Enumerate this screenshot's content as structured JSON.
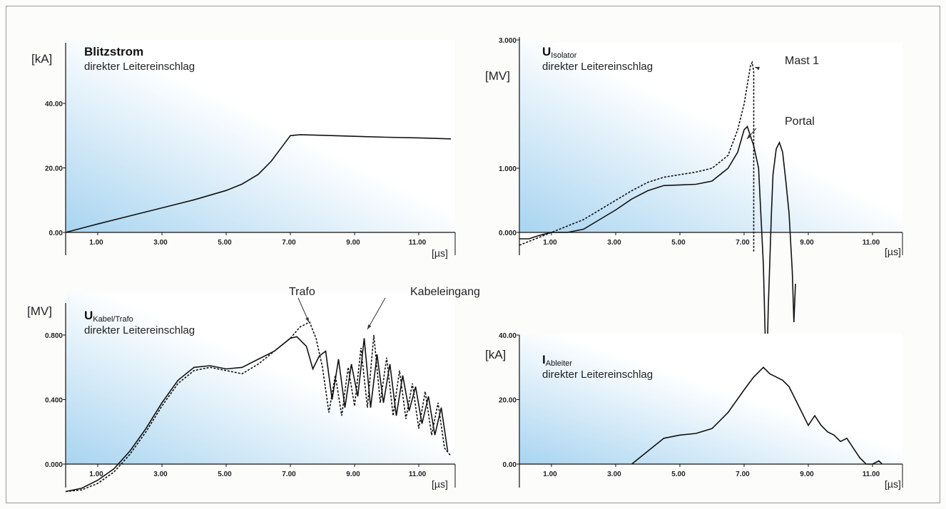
{
  "colors": {
    "background": "#fcfcfb",
    "panel_gradient_start": "#a8d4f0",
    "panel_gradient_end": "#ffffff",
    "line": "#111111",
    "axis": "#111111",
    "frame": "#9a9a9a"
  },
  "chart_data": [
    {
      "id": "blitzstrom",
      "type": "line",
      "title": "Blitzstrom",
      "subtitle": "direkter Leitereinschlag",
      "ylabel": "[kA]",
      "xlabel": "[µs]",
      "xlim": [
        0,
        12
      ],
      "ylim": [
        0,
        52
      ],
      "xticks": [
        "1.00",
        "3.00",
        "5.00",
        "7.00",
        "9.00",
        "11.00"
      ],
      "yticks": [
        "0.00",
        "20.00",
        "40.00"
      ],
      "series": [
        {
          "style": "solid",
          "x": [
            0,
            1,
            2,
            3,
            4,
            5,
            5.5,
            6,
            6.4,
            6.7,
            7,
            7.3,
            7.6,
            8,
            9,
            10,
            11,
            12
          ],
          "y": [
            0,
            2.6,
            5.1,
            7.6,
            10.1,
            13.0,
            15.0,
            18.0,
            22.0,
            26.0,
            30.0,
            30.3,
            30.2,
            30.1,
            29.8,
            29.5,
            29.3,
            29.0
          ]
        }
      ]
    },
    {
      "id": "u-isolator",
      "type": "line",
      "title": "U",
      "title_sub": "Isolator",
      "subtitle": "direkter Leitereinschlag",
      "ylabel": "[MV]",
      "xlabel": "[µs]",
      "xlim": [
        0,
        12
      ],
      "ylim": [
        -3.4,
        3.0
      ],
      "xticks": [
        "1.00",
        "3.00",
        "5.00",
        "7.00",
        "9.00",
        "11.00"
      ],
      "yticks": [
        "0.000",
        "1.000",
        "3.000"
      ],
      "annotations": [
        "Mast 1",
        "Portal"
      ],
      "series": [
        {
          "name": "Mast 1",
          "style": "dashed",
          "x": [
            0,
            0.5,
            1,
            1.5,
            2,
            2.5,
            3,
            3.5,
            4,
            4.5,
            5,
            5.5,
            6,
            6.5,
            6.8,
            7,
            7.2,
            7.25,
            7.3,
            7.3
          ],
          "y": [
            -0.2,
            -0.1,
            0.0,
            0.1,
            0.2,
            0.35,
            0.5,
            0.65,
            0.78,
            0.86,
            0.9,
            0.94,
            1.0,
            1.2,
            1.6,
            2.0,
            2.6,
            2.65,
            2.5,
            -0.3
          ]
        },
        {
          "name": "Portal",
          "style": "solid",
          "x": [
            0,
            0.3,
            0.6,
            1,
            1.5,
            2,
            2.5,
            3,
            3.5,
            4,
            4.5,
            5,
            5.5,
            6,
            6.5,
            6.8,
            7,
            7.1,
            7.2,
            7.3,
            7.45,
            7.6,
            7.65,
            7.7,
            7.75,
            7.85,
            7.9,
            8.0,
            8.1,
            8.2,
            8.3,
            8.4,
            8.5,
            8.55,
            8.6
          ],
          "y": [
            -0.1,
            -0.1,
            -0.05,
            0.0,
            0.0,
            0.05,
            0.2,
            0.35,
            0.52,
            0.65,
            0.73,
            0.74,
            0.75,
            0.8,
            1.0,
            1.25,
            1.6,
            1.65,
            1.5,
            1.35,
            1.0,
            -0.5,
            -1.5,
            -2.3,
            -1.2,
            0.3,
            0.9,
            1.3,
            1.4,
            1.25,
            0.8,
            0.3,
            -0.6,
            -1.4,
            -0.8
          ]
        }
      ]
    },
    {
      "id": "u-kabel-trafo",
      "type": "line",
      "title": "U",
      "title_sub": "Kabel/Trafo",
      "subtitle": "direkter Leitereinschlag",
      "ylabel": "[MV]",
      "xlabel": "[µs]",
      "xlim": [
        0,
        12
      ],
      "ylim": [
        -0.17,
        1.0
      ],
      "xticks": [
        "1.00",
        "3.00",
        "5.00",
        "7.00",
        "9.00",
        "11.00"
      ],
      "yticks": [
        "0.000",
        "0.400",
        "0.800"
      ],
      "annotations": [
        "Trafo",
        "Kabeleingang"
      ],
      "series": [
        {
          "name": "Kabeleingang",
          "style": "solid",
          "x": [
            0,
            0.5,
            1,
            1.5,
            2,
            2.5,
            3,
            3.5,
            4,
            4.5,
            5,
            5.5,
            6,
            6.5,
            7,
            7.2,
            7.5,
            7.7,
            7.9,
            8.1,
            8.3,
            8.5,
            8.7,
            8.9,
            9.1,
            9.3,
            9.5,
            9.7,
            9.9,
            10.1,
            10.3,
            10.5,
            10.7,
            10.9,
            11.1,
            11.3,
            11.5,
            11.7,
            11.9
          ],
          "y": [
            -0.17,
            -0.15,
            -0.1,
            -0.03,
            0.08,
            0.22,
            0.38,
            0.52,
            0.6,
            0.61,
            0.59,
            0.6,
            0.65,
            0.7,
            0.78,
            0.79,
            0.73,
            0.59,
            0.67,
            0.7,
            0.4,
            0.65,
            0.35,
            0.62,
            0.42,
            0.78,
            0.35,
            0.68,
            0.38,
            0.62,
            0.3,
            0.55,
            0.33,
            0.48,
            0.25,
            0.42,
            0.18,
            0.35,
            0.08
          ]
        },
        {
          "name": "Trafo",
          "style": "dashed",
          "x": [
            0,
            0.5,
            1,
            1.5,
            2,
            2.5,
            3,
            3.5,
            4,
            4.5,
            5,
            5.5,
            6,
            6.5,
            7,
            7.3,
            7.6,
            7.8,
            8.0,
            8.2,
            8.4,
            8.6,
            8.8,
            9.0,
            9.2,
            9.4,
            9.6,
            9.8,
            10.0,
            10.2,
            10.4,
            10.6,
            10.8,
            11.0,
            11.2,
            11.4,
            11.6,
            11.8,
            12.0
          ],
          "y": [
            -0.17,
            -0.16,
            -0.12,
            -0.05,
            0.06,
            0.2,
            0.36,
            0.5,
            0.58,
            0.6,
            0.58,
            0.56,
            0.62,
            0.7,
            0.78,
            0.85,
            0.88,
            0.78,
            0.6,
            0.32,
            0.55,
            0.3,
            0.6,
            0.36,
            0.72,
            0.35,
            0.8,
            0.38,
            0.66,
            0.3,
            0.58,
            0.28,
            0.5,
            0.22,
            0.45,
            0.18,
            0.38,
            0.1,
            0.05
          ]
        }
      ]
    },
    {
      "id": "i-ableiter",
      "type": "line",
      "title": "I",
      "title_sub": "Ableiter",
      "subtitle": "direkter Leitereinschlag",
      "ylabel": "[kA]",
      "xlabel": "[µs]",
      "xlim": [
        0,
        12
      ],
      "ylim": [
        0,
        40
      ],
      "xticks": [
        "1.00",
        "3.00",
        "5.00",
        "7.00",
        "9.00",
        "11.00"
      ],
      "yticks": [
        "0.00",
        "20.00",
        "40.00"
      ],
      "series": [
        {
          "style": "solid",
          "x": [
            3.5,
            4.0,
            4.5,
            5.0,
            5.5,
            6.0,
            6.5,
            7.0,
            7.3,
            7.6,
            7.8,
            8.0,
            8.2,
            8.4,
            8.6,
            8.8,
            9.0,
            9.2,
            9.4,
            9.6,
            9.8,
            10.0,
            10.2,
            10.4,
            10.6,
            10.8,
            11.0,
            11.2,
            11.3
          ],
          "y": [
            0,
            4,
            8,
            9,
            9.5,
            11,
            16,
            23,
            27,
            30,
            28,
            27,
            26,
            24,
            20,
            16,
            12,
            15,
            12,
            10,
            9,
            7,
            8,
            5,
            2,
            0,
            0,
            1,
            0
          ]
        }
      ]
    }
  ]
}
